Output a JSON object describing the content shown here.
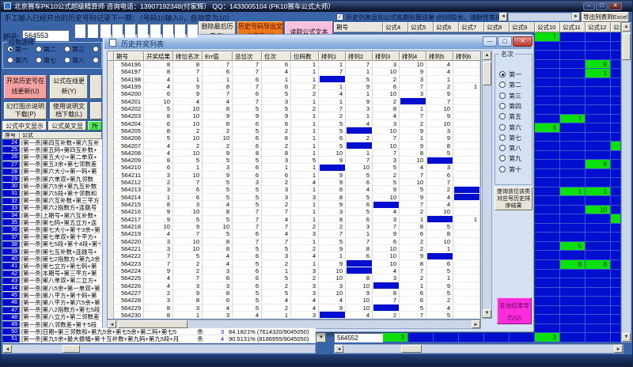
{
  "window": {
    "title": "北京赛车PK10公式超级精算师  咨询电话：13907192348(付家辉）  QQ：1433005104 (PK10赛车公式大师）"
  },
  "top": {
    "instruction": "手工输入已经开出的历史号码记录下一期：（号码10输入0，自动变为10）",
    "issue_label": "期号:",
    "issue_value": "564553",
    "btn_delete": "删除最后历史(D)",
    "btn_export_history": "历史号码导出文本文件(X)",
    "btn_read_formula": "读取公式文本(W)",
    "chk_label": "历史列表显示公式各期验算结果 (时间较长，请耐性等待...)",
    "btn_export_excel": "导出列表到Excel"
  },
  "left_panel": {
    "group_label": "位数选择",
    "radios_row1": [
      "第一",
      "第二",
      "第三",
      "第四"
    ],
    "radios_row2": [
      "第六",
      "第七",
      "第八",
      "第九"
    ],
    "selected_radio": "第一",
    "buttons": {
      "update_history": "开奖历史号在线更新(U)",
      "update_formula": "公式在线更新(Y)",
      "slide_doc": "幻灯图示说明下载(P)",
      "manual_doc": "使用说明文档下载(L)",
      "cn_display": "公式中文显示",
      "en_display": "公式英文显示",
      "green_partial": "所"
    },
    "list_header": {
      "no": "序号",
      "formula": "公式"
    },
    "formula_rows": [
      {
        "no": 24,
        "text": "[第一杀]第四互补数+第六互补"
      },
      {
        "no": 25,
        "text": "[第一杀]第五码+第四互补数+"
      },
      {
        "no": 26,
        "text": "[第一杀]第五大小+第二单双+"
      },
      {
        "no": 27,
        "text": "[第一杀]第五3余+第七邻数差"
      },
      {
        "no": 28,
        "text": "[第一杀]第六大小+第一码+第"
      },
      {
        "no": 29,
        "text": "[第一杀]第六单双+第九邻数"
      },
      {
        "no": 30,
        "text": "[第一杀]第六5余+第九互补数"
      },
      {
        "no": 31,
        "text": "[第一杀]第六5段+第十邻数和"
      },
      {
        "no": 32,
        "text": "[第一杀]第六互补数+第三平方"
      },
      {
        "no": 33,
        "text": "[第一杀]第六2指数方+连跳号"
      },
      {
        "no": 34,
        "text": "[第一杀]上期号+第六互补数+"
      },
      {
        "no": 35,
        "text": "[第一杀]第七码+第五立方+连"
      },
      {
        "no": 36,
        "text": "[第一杀]第七大小+第十3余+第"
      },
      {
        "no": 37,
        "text": "[第一杀]第七单双+第十平方+"
      },
      {
        "no": 38,
        "text": "[第一杀]第七5段+第十4段+第十"
      },
      {
        "no": 39,
        "text": "[第一杀]第七互补数+连跳号+"
      },
      {
        "no": 40,
        "text": "[第一杀]第七2指数方+第九3余"
      },
      {
        "no": 41,
        "text": "[第一杀]第七立方+第七码+第"
      },
      {
        "no": 42,
        "text": "[第一杀]本期号+第三平方+第"
      },
      {
        "no": 43,
        "text": "[第一杀]第八单双+第二立方+"
      },
      {
        "no": 44,
        "text": "[第一杀]第八5余+第一单双+第"
      },
      {
        "no": 45,
        "text": "[第一杀]第八平方+第十码+第"
      },
      {
        "no": 46,
        "text": "[第一杀]第八平方+第六5余+第"
      },
      {
        "no": 47,
        "text": "[第一杀]第八2指数方+第七5段"
      },
      {
        "no": 48,
        "text": "[第一杀]第八立方+第二邻数差"
      },
      {
        "no": 49,
        "text": "[第一杀]第八邻数差+第十5段"
      },
      {
        "no": 50,
        "text": "[第一杀]日期+第三邻数和+第九5余+第七5余+第二码+第七5",
        "action": "杀",
        "count": "3",
        "pct": "84.1821% (7614320/9045050)"
      },
      {
        "no": 51,
        "text": "[第一杀]第九5余+最大振幅+第十互补数+第九码+第九5段+月",
        "action": "杀",
        "count": "4",
        "pct": "90.5131% (8186955/9045050)"
      }
    ]
  },
  "bg_table": {
    "columns": [
      "期号",
      "公式4",
      "公式5",
      "公式6",
      "公式7",
      "公式8",
      "公式9",
      "公式10",
      "公式11",
      "公式12",
      "公:"
    ],
    "visible_rows": 33,
    "green_cells": [
      {
        "r": 0,
        "c": 0,
        "v": "7"
      },
      {
        "r": 3,
        "c": 2,
        "v": "9"
      },
      {
        "r": 4,
        "c": 2,
        "v": "1"
      },
      {
        "r": 9,
        "c": 1,
        "v": "7"
      },
      {
        "r": 10,
        "c": 0,
        "v": "6"
      },
      {
        "r": 12,
        "c": 3,
        "v": ""
      },
      {
        "r": 14,
        "c": 2,
        "v": "6"
      },
      {
        "r": 17,
        "c": 1,
        "v": "1"
      },
      {
        "r": 17,
        "c": 2,
        "v": "1"
      },
      {
        "r": 19,
        "c": 2,
        "v": "10"
      },
      {
        "r": 20,
        "c": 3,
        "v": ""
      },
      {
        "r": 23,
        "c": 1,
        "v": "5"
      },
      {
        "r": 25,
        "c": 1,
        "v": "8"
      },
      {
        "r": 25,
        "c": 2,
        "v": "8"
      }
    ],
    "bottom_row": {
      "id": "564552",
      "cells": [
        {
          "v": "3",
          "green": true
        },
        {
          "v": "",
          "green": false
        },
        {
          "v": "",
          "green": false
        },
        {
          "v": "",
          "green": false
        },
        {
          "v": "",
          "green": false
        },
        {
          "v": "",
          "green": false
        },
        {
          "v": "3",
          "green": true
        },
        {
          "v": "",
          "green": false
        },
        {
          "v": "",
          "green": false
        },
        {
          "v": "",
          "green": false
        }
      ]
    }
  },
  "popup": {
    "title": "历史开奖列表",
    "columns": [
      "期号",
      "开奖结果",
      "排位名次",
      "Err值",
      "总位次",
      "位次",
      "位码数",
      "排列1",
      "排列2",
      "排列3",
      "排列4",
      "排列5",
      "排列6"
    ],
    "rows": [
      {
        "id": "564196",
        "v": [
          8,
          8,
          7,
          7,
          6,
          1,
          1,
          7,
          3,
          10,
          4,
          ""
        ],
        "hl": -1
      },
      {
        "id": "564197",
        "v": [
          8,
          7,
          6,
          7,
          4,
          1,
          7,
          1,
          10,
          9,
          4,
          ""
        ],
        "hl": -1
      },
      {
        "id": "564198",
        "v": [
          4,
          1,
          1,
          6,
          1,
          1,
          "",
          5,
          2,
          3,
          1,
          ""
        ],
        "hl": 6
      },
      {
        "id": "564199",
        "v": [
          4,
          9,
          8,
          7,
          6,
          2,
          1,
          9,
          6,
          7,
          2,
          1
        ],
        "hl": -1
      },
      {
        "id": "564200",
        "v": [
          6,
          9,
          7,
          6,
          5,
          2,
          4,
          1,
          10,
          3,
          9,
          ""
        ],
        "hl": -1
      },
      {
        "id": "564201",
        "v": [
          10,
          4,
          4,
          7,
          3,
          1,
          1,
          9,
          2,
          "",
          7,
          ""
        ],
        "hl": 9
      },
      {
        "id": "564202",
        "v": [
          5,
          10,
          8,
          5,
          5,
          2,
          7,
          3,
          8,
          1,
          10,
          ""
        ],
        "hl": -1
      },
      {
        "id": "564203",
        "v": [
          8,
          10,
          9,
          9,
          9,
          1,
          2,
          1,
          4,
          7,
          9,
          ""
        ],
        "hl": -1
      },
      {
        "id": "564204",
        "v": [
          6,
          10,
          8,
          6,
          6,
          1,
          5,
          4,
          3,
          2,
          10,
          ""
        ],
        "hl": -1
      },
      {
        "id": "564205",
        "v": [
          8,
          2,
          2,
          5,
          2,
          1,
          5,
          "",
          10,
          9,
          3,
          ""
        ],
        "hl": 7
      },
      {
        "id": "564206",
        "v": [
          5,
          10,
          10,
          6,
          6,
          1,
          6,
          2,
          7,
          1,
          9,
          ""
        ],
        "hl": -1
      },
      {
        "id": "564207",
        "v": [
          4,
          2,
          2,
          6,
          2,
          1,
          5,
          "",
          10,
          9,
          8,
          ""
        ],
        "hl": 7
      },
      {
        "id": "564208",
        "v": [
          4,
          10,
          9,
          8,
          8,
          1,
          10,
          1,
          7,
          8,
          5,
          ""
        ],
        "hl": -1
      },
      {
        "id": "564209",
        "v": [
          8,
          5,
          5,
          5,
          3,
          5,
          9,
          7,
          3,
          10,
          "",
          ""
        ],
        "hl": 10
      },
      {
        "id": "564210",
        "v": [
          6,
          1,
          3,
          6,
          1,
          1,
          "",
          10,
          5,
          4,
          3,
          ""
        ],
        "hl": 6
      },
      {
        "id": "564211",
        "v": [
          3,
          10,
          9,
          6,
          6,
          1,
          9,
          5,
          2,
          7,
          6,
          ""
        ],
        "hl": -1
      },
      {
        "id": "564212",
        "v": [
          2,
          7,
          5,
          3,
          2,
          4,
          9,
          6,
          5,
          10,
          7,
          ""
        ],
        "hl": -1
      },
      {
        "id": "564213",
        "v": [
          3,
          6,
          5,
          5,
          3,
          1,
          6,
          4,
          9,
          5,
          2,
          ""
        ],
        "hl": 11
      },
      {
        "id": "564214",
        "v": [
          1,
          6,
          5,
          5,
          3,
          3,
          8,
          5,
          10,
          9,
          4,
          ""
        ],
        "hl": 11
      },
      {
        "id": "564215",
        "v": [
          8,
          3,
          4,
          5,
          2,
          1,
          9,
          6,
          "",
          7,
          4,
          ""
        ],
        "hl": 8
      },
      {
        "id": "564216",
        "v": [
          9,
          10,
          8,
          7,
          7,
          1,
          3,
          5,
          4,
          2,
          10,
          ""
        ],
        "hl": -1
      },
      {
        "id": "564217",
        "v": [
          9,
          5,
          5,
          7,
          4,
          1,
          8,
          6,
          3,
          1,
          "",
          1
        ],
        "hl": 10
      },
      {
        "id": "564218",
        "v": [
          10,
          9,
          10,
          7,
          7,
          2,
          2,
          3,
          7,
          8,
          5,
          ""
        ],
        "hl": -1
      },
      {
        "id": "564219",
        "v": [
          4,
          7,
          5,
          6,
          4,
          3,
          7,
          1,
          9,
          6,
          8,
          ""
        ],
        "hl": -1
      },
      {
        "id": "564220",
        "v": [
          3,
          10,
          8,
          7,
          7,
          1,
          5,
          7,
          6,
          2,
          10,
          ""
        ],
        "hl": -1
      },
      {
        "id": "564221",
        "v": [
          3,
          10,
          8,
          5,
          5,
          2,
          9,
          8,
          10,
          2,
          1,
          ""
        ],
        "hl": -1
      },
      {
        "id": "564222",
        "v": [
          7,
          5,
          4,
          6,
          3,
          4,
          1,
          6,
          10,
          9,
          "",
          ""
        ],
        "hl": 10
      },
      {
        "id": "564223",
        "v": [
          7,
          2,
          4,
          5,
          2,
          1,
          9,
          "",
          10,
          8,
          6,
          ""
        ],
        "hl": 7
      },
      {
        "id": "564224",
        "v": [
          9,
          2,
          3,
          6,
          1,
          3,
          10,
          "",
          4,
          7,
          5,
          ""
        ],
        "hl": 7
      },
      {
        "id": "564225",
        "v": [
          4,
          7,
          6,
          6,
          5,
          2,
          10,
          8,
          3,
          2,
          1,
          ""
        ],
        "hl": -1
      },
      {
        "id": "564226",
        "v": [
          4,
          3,
          3,
          6,
          2,
          3,
          3,
          10,
          "",
          1,
          9,
          ""
        ],
        "hl": 8
      },
      {
        "id": "564227",
        "v": [
          2,
          9,
          8,
          5,
          5,
          3,
          10,
          9,
          8,
          6,
          5,
          ""
        ],
        "hl": -1
      },
      {
        "id": "564228",
        "v": [
          3,
          8,
          6,
          5,
          4,
          4,
          4,
          10,
          7,
          6,
          2,
          ""
        ],
        "hl": -1
      },
      {
        "id": "564229",
        "v": [
          8,
          3,
          4,
          5,
          2,
          4,
          9,
          10,
          "",
          5,
          4,
          ""
        ],
        "hl": 8
      },
      {
        "id": "564230",
        "v": [
          8,
          1,
          3,
          4,
          1,
          3,
          "",
          4,
          2,
          7,
          5,
          ""
        ],
        "hl": 6
      }
    ],
    "side_panel": {
      "group_label": "名次",
      "options": [
        "第一",
        "第二",
        "第三",
        "第四",
        "第五",
        "第六",
        "第七",
        "第八",
        "第九",
        "第十"
      ],
      "selected": "第一",
      "query_button": "查询该位该类对应号历史排序结果",
      "export_button": "查询结果导出(Q)"
    }
  },
  "colors": {
    "form_bg": "#3a64a8",
    "orange_btn": "#f07818",
    "pink_btn": "#f8c0dc",
    "salmon_btn": "#f4a0a0",
    "magenta_btn": "#fb2cdc",
    "cell_blue": "#000ed0",
    "cell_green": "#0ce00c"
  }
}
